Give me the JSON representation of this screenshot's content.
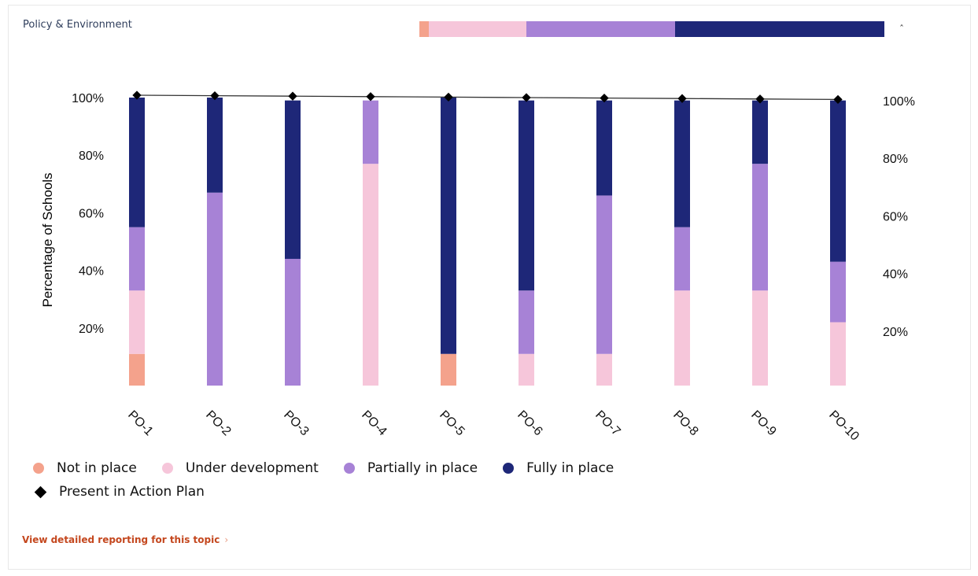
{
  "header": {
    "title": "Policy & Environment",
    "collapse_icon": "chevron-up-icon"
  },
  "summary_bar": [
    {
      "status": "Not in place",
      "value": 2,
      "color": "#f4a28c"
    },
    {
      "status": "Under development",
      "value": 21,
      "color": "#f6c6da"
    },
    {
      "status": "Partially in place",
      "value": 32,
      "color": "#a782d6"
    },
    {
      "status": "Fully in place",
      "value": 45,
      "color": "#1e2778"
    }
  ],
  "chart_data": {
    "type": "bar",
    "stacked": true,
    "categories": [
      "PO-1",
      "PO-2",
      "PO-3",
      "PO-4",
      "PO-5",
      "PO-6",
      "PO-7",
      "PO-8",
      "PO-9",
      "PO-10"
    ],
    "ylabel": "Percentage of Schools",
    "ylim": [
      0,
      100
    ],
    "yticks": [
      "20%",
      "40%",
      "60%",
      "80%",
      "100%"
    ],
    "yticks_right": [
      "20%",
      "40%",
      "60%",
      "80%",
      "100%"
    ],
    "series": [
      {
        "name": "Not in place",
        "color": "#f4a28c",
        "values": [
          11,
          0,
          0,
          0,
          11,
          0,
          0,
          0,
          0,
          0
        ]
      },
      {
        "name": "Under development",
        "color": "#f6c6da",
        "values": [
          22,
          0,
          0,
          77,
          0,
          11,
          11,
          33,
          33,
          22
        ]
      },
      {
        "name": "Partially in place",
        "color": "#a782d6",
        "values": [
          22,
          67,
          44,
          22,
          0,
          22,
          55,
          22,
          44,
          21
        ]
      },
      {
        "name": "Fully in place",
        "color": "#1e2778",
        "values": [
          45,
          33,
          55,
          0,
          89,
          66,
          33,
          44,
          22,
          56
        ]
      }
    ],
    "line_series": {
      "name": "Present in Action Plan",
      "color": "#000000",
      "marker": "diamond",
      "values": [
        100,
        100,
        100,
        100,
        100,
        100,
        100,
        100,
        100,
        100
      ]
    },
    "legend_position": "bottom-left",
    "grid": false
  },
  "legend": {
    "items": [
      "Not in place",
      "Under development",
      "Partially in place",
      "Fully in place"
    ],
    "line_item": "Present in Action Plan"
  },
  "footer": {
    "link_label": "View detailed reporting for this topic",
    "link_arrow": "›"
  }
}
